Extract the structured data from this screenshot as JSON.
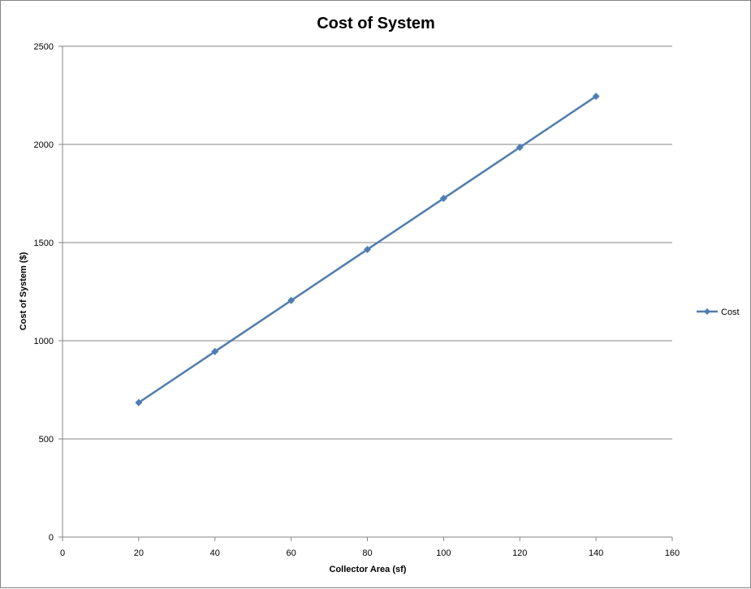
{
  "chart_data": {
    "type": "line",
    "title": "Cost of System",
    "xlabel": "Collector Area (sf)",
    "ylabel": "Cost of System ($)",
    "xlim": [
      0,
      160
    ],
    "ylim": [
      0,
      2500
    ],
    "x_ticks": [
      "0",
      "20",
      "40",
      "60",
      "80",
      "100",
      "120",
      "140",
      "160"
    ],
    "y_ticks": [
      "0",
      "500",
      "1000",
      "1500",
      "2000",
      "2500"
    ],
    "grid": "horizontal",
    "legend_position": "right",
    "series": [
      {
        "name": "Cost",
        "color": "#4a7ebb",
        "marker": "diamond",
        "x": [
          20,
          40,
          60,
          80,
          100,
          120,
          140
        ],
        "y": [
          685,
          945,
          1205,
          1465,
          1725,
          1985,
          2245
        ]
      }
    ]
  }
}
